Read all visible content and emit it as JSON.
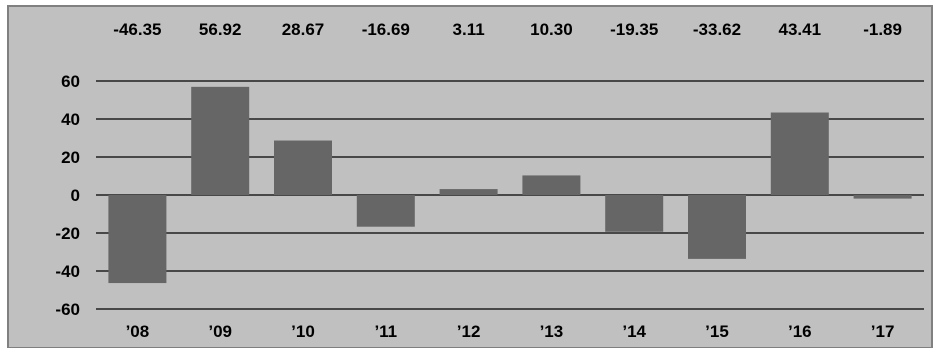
{
  "chart_data": {
    "type": "bar",
    "categories": [
      "’08",
      "’09",
      "’10",
      "’11",
      "’12",
      "’13",
      "’14",
      "’15",
      "’16",
      "’17"
    ],
    "values": [
      -46.35,
      56.92,
      28.67,
      -16.69,
      3.11,
      10.3,
      -19.35,
      -33.62,
      43.41,
      -1.89
    ],
    "value_labels": [
      "-46.35",
      "56.92",
      "28.67",
      "-16.69",
      "3.11",
      "10.30",
      "-19.35",
      "-33.62",
      "43.41",
      "-1.89"
    ],
    "ylim": [
      -60,
      60
    ],
    "yticks": [
      60,
      40,
      20,
      0,
      -20,
      -40,
      -60
    ],
    "ytick_labels": [
      "60",
      "40",
      "20",
      "0",
      "-20",
      "-40",
      "-60"
    ],
    "title": "",
    "xlabel": "",
    "ylabel": "",
    "grid": true,
    "legend": "none",
    "colors": {
      "bar": "#666666",
      "plot_background": "#c0c0c0",
      "gridline": "#000000",
      "frame": "#808080"
    }
  }
}
